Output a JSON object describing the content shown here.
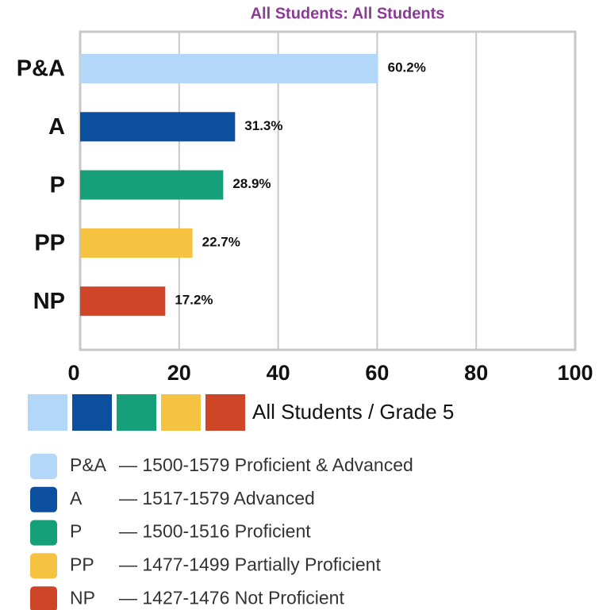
{
  "chart_data": {
    "type": "bar",
    "orientation": "horizontal",
    "title": "All Students: All Students",
    "categories": [
      "P&A",
      "A",
      "P",
      "PP",
      "NP"
    ],
    "values": [
      60.2,
      31.3,
      28.9,
      22.7,
      17.2
    ],
    "value_labels": [
      "60.2%",
      "31.3%",
      "28.9%",
      "22.7%",
      "17.2%"
    ],
    "colors": [
      "#b3d7f8",
      "#0b4f9e",
      "#15a07a",
      "#f5c242",
      "#cf4527"
    ],
    "xlim": [
      0,
      100
    ],
    "xticks": [
      0,
      20,
      40,
      60,
      80,
      100
    ],
    "grid": true,
    "series_name": "All Students / Grade 5",
    "legend_items": [
      {
        "abbr": "P&A",
        "description": "— 1500-1579 Proficient & Advanced"
      },
      {
        "abbr": "A",
        "description": "— 1517-1579 Advanced"
      },
      {
        "abbr": "P",
        "description": "— 1500-1516 Proficient"
      },
      {
        "abbr": "PP",
        "description": "— 1477-1499 Partially Proficient"
      },
      {
        "abbr": "NP",
        "description": "— 1427-1476 Not Proficient"
      }
    ]
  }
}
